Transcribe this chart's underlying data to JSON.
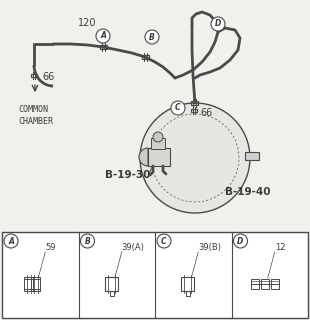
{
  "bg_color": "#f0f0ec",
  "line_color": "#4a4a4a",
  "text_color": "#3a3a3a",
  "bottom_bg": "#ffffff",
  "bottom_panels": [
    {
      "label": "A",
      "num": "59"
    },
    {
      "label": "B",
      "num": "39(A)"
    },
    {
      "label": "C",
      "num": "39(B)"
    },
    {
      "label": "D",
      "num": "12"
    }
  ],
  "label_120": "120",
  "label_66a": "66",
  "label_66b": "66",
  "label_common": "COMMON\nCHAMBER",
  "label_b1930": "B-19-30",
  "label_b1940": "B-19-40"
}
